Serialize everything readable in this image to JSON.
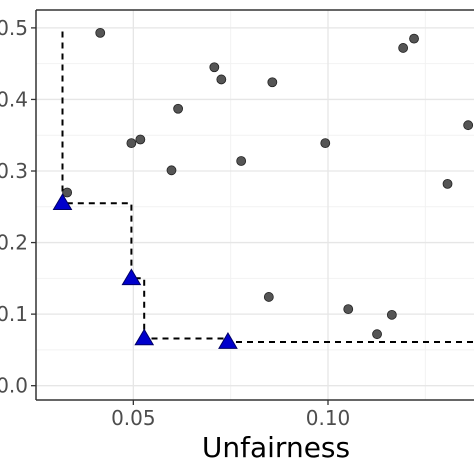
{
  "chart_data": {
    "type": "scatter",
    "title": "",
    "xlabel": "Unfairness",
    "ylabel": "",
    "xlim": [
      0.025,
      0.1375
    ],
    "ylim": [
      -0.02,
      0.525
    ],
    "x_ticks": [
      {
        "value": 0.05,
        "label": "0.05"
      },
      {
        "value": 0.1,
        "label": "0.10"
      }
    ],
    "y_ticks": [
      {
        "value": 0.0,
        "label": "0.0"
      },
      {
        "value": 0.1,
        "label": "0.1"
      },
      {
        "value": 0.2,
        "label": "0.2"
      },
      {
        "value": 0.3,
        "label": "0.3"
      },
      {
        "value": 0.4,
        "label": "0.4"
      },
      {
        "value": 0.5,
        "label": "0.5"
      }
    ],
    "grid": true,
    "legend": "none",
    "series": [
      {
        "marker": "circle",
        "color": "#555555",
        "points": [
          {
            "x": 0.0415,
            "y": 0.493
          },
          {
            "x": 0.033,
            "y": 0.27
          },
          {
            "x": 0.0495,
            "y": 0.339
          },
          {
            "x": 0.0518,
            "y": 0.344
          },
          {
            "x": 0.0598,
            "y": 0.301
          },
          {
            "x": 0.0615,
            "y": 0.387
          },
          {
            "x": 0.0708,
            "y": 0.445
          },
          {
            "x": 0.0726,
            "y": 0.428
          },
          {
            "x": 0.0777,
            "y": 0.314
          },
          {
            "x": 0.0848,
            "y": 0.124
          },
          {
            "x": 0.0857,
            "y": 0.424
          },
          {
            "x": 0.0993,
            "y": 0.339
          },
          {
            "x": 0.1052,
            "y": 0.107
          },
          {
            "x": 0.1126,
            "y": 0.072
          },
          {
            "x": 0.1164,
            "y": 0.099
          },
          {
            "x": 0.1193,
            "y": 0.472
          },
          {
            "x": 0.1221,
            "y": 0.485
          },
          {
            "x": 0.1307,
            "y": 0.282
          },
          {
            "x": 0.136,
            "y": 0.364
          }
        ]
      },
      {
        "marker": "triangle",
        "color": "#0000cc",
        "points": [
          {
            "x": 0.0318,
            "y": 0.255
          },
          {
            "x": 0.0495,
            "y": 0.15
          },
          {
            "x": 0.0528,
            "y": 0.066
          },
          {
            "x": 0.0743,
            "y": 0.061
          }
        ]
      }
    ],
    "frontier_line": {
      "style": "dashed",
      "color": "#000000",
      "points": [
        {
          "x": 0.0318,
          "y": 0.495
        },
        {
          "x": 0.0318,
          "y": 0.255
        },
        {
          "x": 0.0495,
          "y": 0.255
        },
        {
          "x": 0.0495,
          "y": 0.15
        },
        {
          "x": 0.0528,
          "y": 0.15
        },
        {
          "x": 0.0528,
          "y": 0.066
        },
        {
          "x": 0.0743,
          "y": 0.066
        },
        {
          "x": 0.0743,
          "y": 0.061
        },
        {
          "x": 0.1375,
          "y": 0.061
        }
      ]
    }
  }
}
